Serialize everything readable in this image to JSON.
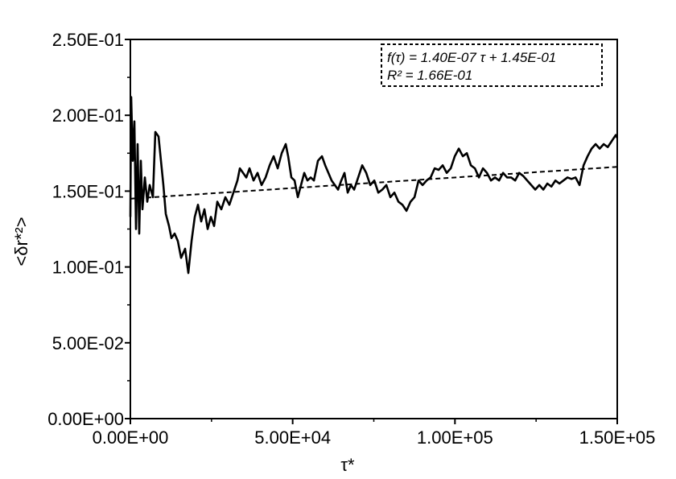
{
  "chart_data": {
    "type": "line",
    "xlabel": "τ*",
    "ylabel": "<δr*²>",
    "annotations": [
      "f(τ) = 1.40E-07 τ + 1.45E-01",
      "R² = 1.66E-01"
    ],
    "xlim": [
      0,
      150000
    ],
    "ylim": [
      0,
      0.25
    ],
    "xticks": [
      {
        "value": 0,
        "label": "0.00E+00"
      },
      {
        "value": 50000,
        "label": "5.00E+04"
      },
      {
        "value": 100000,
        "label": "1.00E+05"
      },
      {
        "value": 150000,
        "label": "1.50E+05"
      }
    ],
    "yticks": [
      {
        "value": 0,
        "label": "0.00E+00"
      },
      {
        "value": 0.05,
        "label": "5.00E-02"
      },
      {
        "value": 0.1,
        "label": "1.00E-01"
      },
      {
        "value": 0.15,
        "label": "1.50E-01"
      },
      {
        "value": 0.2,
        "label": "2.00E-01"
      },
      {
        "value": 0.25,
        "label": "2.50E-01"
      }
    ],
    "xticks_minor": [
      25000,
      75000,
      125000
    ],
    "yticks_minor": [
      0.025,
      0.075,
      0.125,
      0.175,
      0.225
    ],
    "series": [
      {
        "color": "#000000",
        "style": "solid",
        "x": [
          0,
          248,
          744,
          1240,
          1736,
          2232,
          2728,
          3224,
          3720,
          4464,
          5208,
          5952,
          6944,
          7688,
          8680,
          9424,
          10168,
          10912,
          11904,
          12648,
          13640,
          14632,
          15624,
          16864,
          17856,
          18848,
          19840,
          20832,
          21824,
          22816,
          23808,
          24800,
          25792,
          26784,
          28024,
          29264,
          30504,
          31744,
          32984,
          33728,
          34720,
          35712,
          36704,
          37944,
          39184,
          40424,
          41664,
          42904,
          44144,
          45384,
          46624,
          47864,
          48608,
          49600,
          50592,
          51584,
          52576,
          53568,
          54560,
          55552,
          56544,
          57784,
          59024,
          60016,
          61008,
          62000,
          62992,
          63984,
          64976,
          65968,
          66960,
          67952,
          68944,
          70184,
          71424,
          72664,
          73904,
          75144,
          76384,
          77624,
          78864,
          80104,
          81344,
          82584,
          83824,
          85064,
          86304,
          87544,
          88784,
          90024,
          91264,
          92504,
          93744,
          94984,
          96224,
          97464,
          98704,
          99944,
          101184,
          102424,
          103664,
          104904,
          106144,
          107384,
          108624,
          109864,
          111104,
          112344,
          113584,
          114824,
          116064,
          117304,
          118544,
          119784,
          121024,
          122264,
          123504,
          124744,
          125984,
          127224,
          128464,
          129704,
          130944,
          132184,
          133424,
          134664,
          135904,
          137144,
          138384,
          139624,
          140864,
          142104,
          143344,
          144584,
          145824,
          147064,
          148304,
          149544,
          150000
        ],
        "values": [
          0.133,
          0.212,
          0.17,
          0.196,
          0.125,
          0.181,
          0.122,
          0.17,
          0.138,
          0.159,
          0.143,
          0.154,
          0.146,
          0.189,
          0.186,
          0.17,
          0.154,
          0.135,
          0.127,
          0.119,
          0.122,
          0.117,
          0.106,
          0.112,
          0.096,
          0.117,
          0.133,
          0.141,
          0.13,
          0.138,
          0.125,
          0.133,
          0.127,
          0.143,
          0.138,
          0.146,
          0.141,
          0.149,
          0.157,
          0.165,
          0.162,
          0.159,
          0.165,
          0.157,
          0.162,
          0.154,
          0.159,
          0.167,
          0.173,
          0.165,
          0.175,
          0.181,
          0.173,
          0.159,
          0.157,
          0.146,
          0.154,
          0.162,
          0.157,
          0.159,
          0.157,
          0.17,
          0.173,
          0.167,
          0.162,
          0.157,
          0.154,
          0.151,
          0.157,
          0.162,
          0.149,
          0.154,
          0.151,
          0.159,
          0.167,
          0.162,
          0.154,
          0.157,
          0.149,
          0.151,
          0.154,
          0.146,
          0.149,
          0.143,
          0.141,
          0.137,
          0.143,
          0.146,
          0.157,
          0.154,
          0.157,
          0.159,
          0.165,
          0.164,
          0.167,
          0.162,
          0.165,
          0.173,
          0.178,
          0.173,
          0.175,
          0.167,
          0.165,
          0.159,
          0.165,
          0.162,
          0.157,
          0.159,
          0.157,
          0.162,
          0.159,
          0.159,
          0.157,
          0.162,
          0.16,
          0.157,
          0.154,
          0.151,
          0.154,
          0.151,
          0.155,
          0.153,
          0.157,
          0.155,
          0.157,
          0.159,
          0.158,
          0.159,
          0.154,
          0.167,
          0.173,
          0.178,
          0.181,
          0.178,
          0.181,
          0.179,
          0.183,
          0.187,
          0.185
        ]
      },
      {
        "color": "#000000",
        "style": "dashed",
        "x": [
          0,
          150000
        ],
        "values": [
          0.145,
          0.166
        ]
      }
    ]
  }
}
